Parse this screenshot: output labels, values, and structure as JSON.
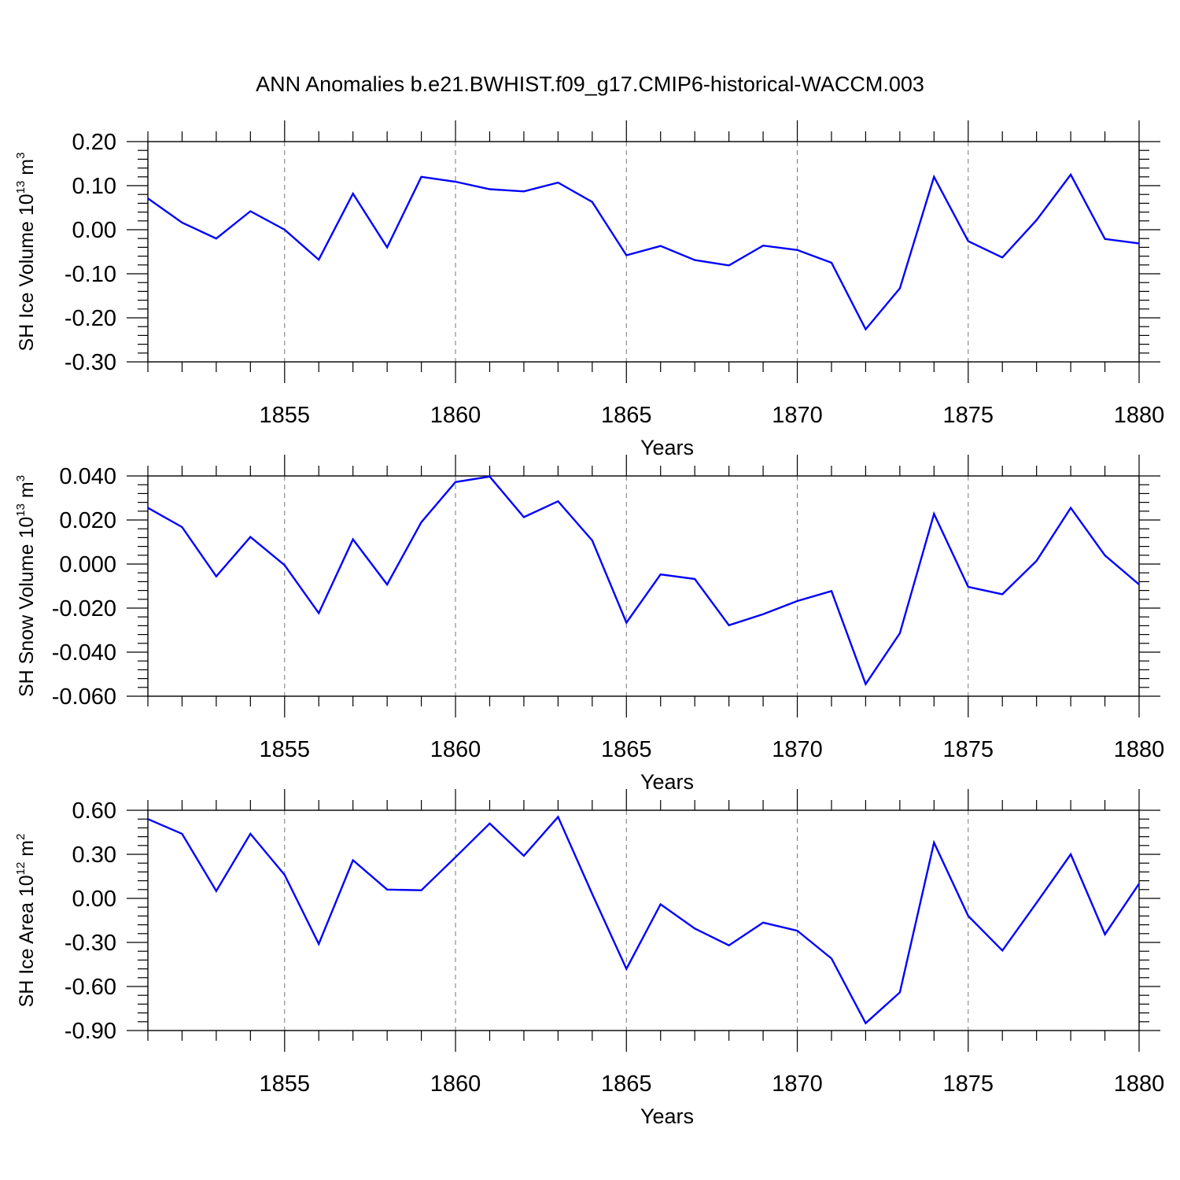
{
  "title": "ANN Anomalies b.e21.BWHIST.f09_g17.CMIP6-historical-WACCM.003",
  "colors": {
    "line": "#0000ff",
    "axes": "#000000",
    "grid": "#777777"
  },
  "chart_data": [
    {
      "type": "line",
      "name": "ice-volume",
      "ylabel": {
        "text": "SH Ice Volume 10",
        "sup": "13",
        "unit": " m",
        "unit_sup": "3"
      },
      "xlabel": "Years",
      "xlim": [
        1851,
        1880
      ],
      "ylim": [
        -0.3,
        0.2
      ],
      "yticks": [
        0.2,
        0.1,
        0.0,
        -0.1,
        -0.2,
        -0.3
      ],
      "ytick_labels": [
        "0.20",
        "0.10",
        "0.00",
        "-0.10",
        "-0.20",
        "-0.30"
      ],
      "xticks": [
        1855,
        1860,
        1865,
        1870,
        1875,
        1880
      ],
      "xtick_labels": [
        "1855",
        "1860",
        "1865",
        "1870",
        "1875",
        "1880"
      ],
      "grid": "vertical dashed at major x ticks",
      "x": [
        1851,
        1852,
        1853,
        1854,
        1855,
        1856,
        1857,
        1858,
        1859,
        1860,
        1861,
        1862,
        1863,
        1864,
        1865,
        1866,
        1867,
        1868,
        1869,
        1870,
        1871,
        1872,
        1873,
        1874,
        1875,
        1876,
        1877,
        1878,
        1879,
        1880
      ],
      "values": [
        0.071,
        0.016,
        -0.02,
        0.042,
        0.0,
        -0.068,
        0.082,
        -0.04,
        0.12,
        0.109,
        0.092,
        0.087,
        0.107,
        0.063,
        -0.058,
        -0.037,
        -0.069,
        -0.081,
        -0.036,
        -0.046,
        -0.075,
        -0.226,
        -0.133,
        0.12,
        -0.026,
        -0.063,
        0.022,
        0.125,
        -0.021,
        -0.031
      ]
    },
    {
      "type": "line",
      "name": "snow-volume",
      "ylabel": {
        "text": "SH Snow Volume 10",
        "sup": "13",
        "unit": " m",
        "unit_sup": "3"
      },
      "xlabel": "Years",
      "xlim": [
        1851,
        1880
      ],
      "ylim": [
        -0.06,
        0.04
      ],
      "yticks": [
        0.04,
        0.02,
        0.0,
        -0.02,
        -0.04,
        -0.06
      ],
      "ytick_labels": [
        "0.040",
        "0.020",
        "0.000",
        "-0.020",
        "-0.040",
        "-0.060"
      ],
      "xticks": [
        1855,
        1860,
        1865,
        1870,
        1875,
        1880
      ],
      "xtick_labels": [
        "1855",
        "1860",
        "1865",
        "1870",
        "1875",
        "1880"
      ],
      "grid": "vertical dashed at major x ticks",
      "x": [
        1851,
        1852,
        1853,
        1854,
        1855,
        1856,
        1857,
        1858,
        1859,
        1860,
        1861,
        1862,
        1863,
        1864,
        1865,
        1866,
        1867,
        1868,
        1869,
        1870,
        1871,
        1872,
        1873,
        1874,
        1875,
        1876,
        1877,
        1878,
        1879,
        1880
      ],
      "values": [
        0.0255,
        0.0168,
        -0.0056,
        0.0123,
        -0.0005,
        -0.0223,
        0.0112,
        -0.0093,
        0.019,
        0.0372,
        0.0397,
        0.0213,
        0.0285,
        0.0107,
        -0.0266,
        -0.0047,
        -0.0068,
        -0.0278,
        -0.0228,
        -0.0168,
        -0.0123,
        -0.0545,
        -0.0314,
        0.0228,
        -0.0104,
        -0.0137,
        0.0015,
        0.0255,
        0.0039,
        -0.0093
      ]
    },
    {
      "type": "line",
      "name": "ice-area",
      "ylabel": {
        "text": "SH Ice Area 10",
        "sup": "12",
        "unit": " m",
        "unit_sup": "2"
      },
      "xlabel": "Years",
      "xlim": [
        1851,
        1880
      ],
      "ylim": [
        -0.9,
        0.6
      ],
      "yticks": [
        0.6,
        0.3,
        0.0,
        -0.3,
        -0.6,
        -0.9
      ],
      "ytick_labels": [
        "0.60",
        "0.30",
        "0.00",
        "-0.30",
        "-0.60",
        "-0.90"
      ],
      "xticks": [
        1855,
        1860,
        1865,
        1870,
        1875,
        1880
      ],
      "xtick_labels": [
        "1855",
        "1860",
        "1865",
        "1870",
        "1875",
        "1880"
      ],
      "grid": "vertical dashed at major x ticks",
      "x": [
        1851,
        1852,
        1853,
        1854,
        1855,
        1856,
        1857,
        1858,
        1859,
        1860,
        1861,
        1862,
        1863,
        1864,
        1865,
        1866,
        1867,
        1868,
        1869,
        1870,
        1871,
        1872,
        1873,
        1874,
        1875,
        1876,
        1877,
        1878,
        1879,
        1880
      ],
      "values": [
        0.54,
        0.44,
        0.05,
        0.44,
        0.16,
        -0.31,
        0.26,
        0.06,
        0.055,
        0.28,
        0.51,
        0.29,
        0.555,
        0.03,
        -0.48,
        -0.04,
        -0.205,
        -0.32,
        -0.165,
        -0.22,
        -0.41,
        -0.85,
        -0.64,
        0.38,
        -0.12,
        -0.355,
        -0.03,
        0.3,
        -0.245,
        0.1
      ]
    }
  ]
}
